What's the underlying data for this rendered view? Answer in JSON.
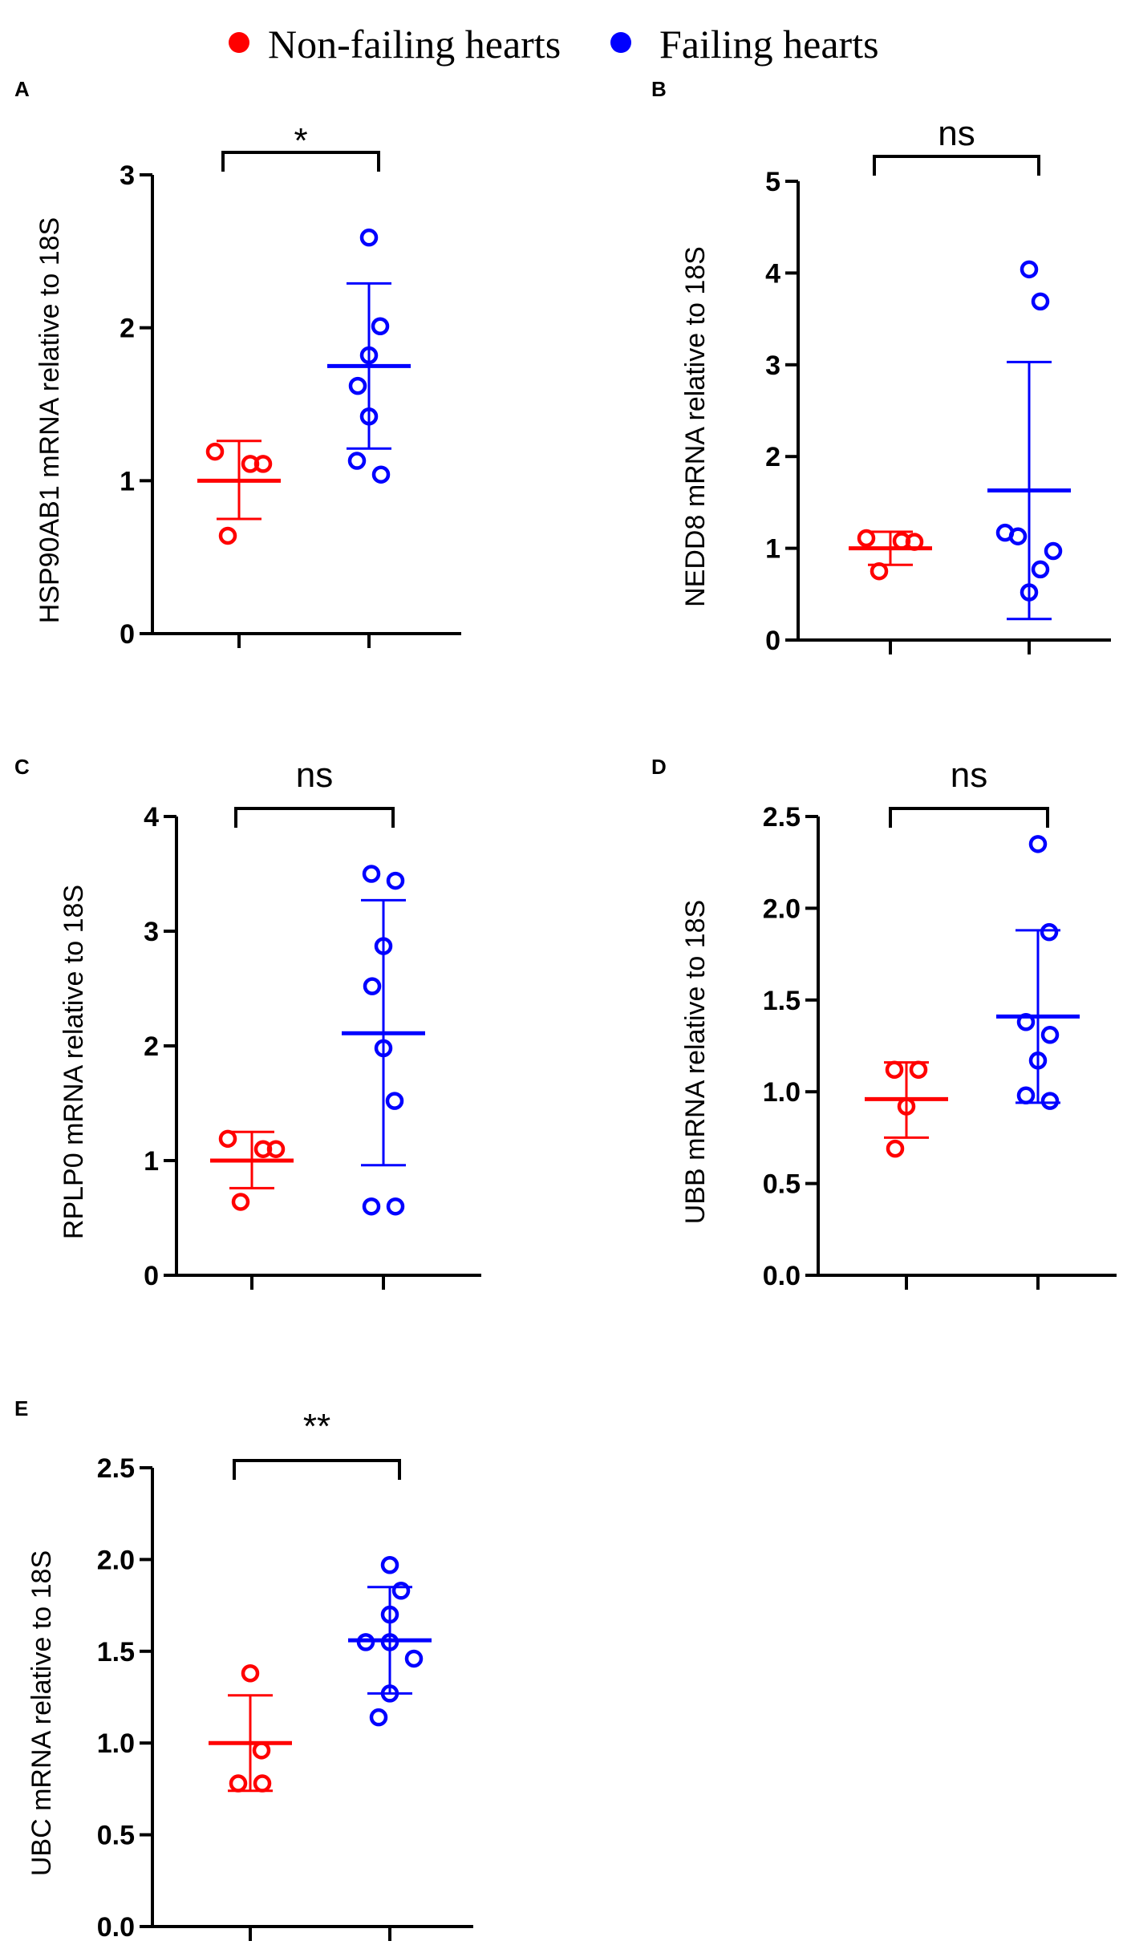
{
  "legend": {
    "items": [
      {
        "label": "Non-failing hearts",
        "color": "#ff0000"
      },
      {
        "label": "Failing hearts",
        "color": "#0000ff"
      }
    ]
  },
  "colors": {
    "non_failing": "#ff0000",
    "failing": "#0000ff",
    "axis": "#000000"
  },
  "chart_data": [
    {
      "panel": "A",
      "type": "scatter",
      "ylabel": "HSP90AB1 mRNA relative to 18S",
      "ylim": [
        0,
        3
      ],
      "yticks": [
        "0",
        "1",
        "2",
        "3"
      ],
      "yticks_values": [
        0,
        1,
        2,
        3
      ],
      "significance": "*",
      "series": [
        {
          "name": "Non-failing hearts",
          "values": [
            1.19,
            1.11,
            1.11,
            0.64
          ],
          "mean": 1.0,
          "sd_low": 0.75,
          "sd_high": 1.26
        },
        {
          "name": "Failing hearts",
          "values": [
            2.59,
            2.01,
            1.82,
            1.62,
            1.42,
            1.13,
            1.04
          ],
          "mean": 1.75,
          "sd_low": 1.21,
          "sd_high": 2.29
        }
      ]
    },
    {
      "panel": "B",
      "type": "scatter",
      "ylabel": "NEDD8 mRNA relative to 18S",
      "ylim": [
        0,
        5
      ],
      "yticks": [
        "0",
        "1",
        "2",
        "3",
        "4",
        "5"
      ],
      "yticks_values": [
        0,
        1,
        2,
        3,
        4,
        5
      ],
      "significance": "ns",
      "series": [
        {
          "name": "Non-failing hearts",
          "values": [
            1.11,
            1.08,
            1.07,
            0.75
          ],
          "mean": 1.0,
          "sd_low": 0.82,
          "sd_high": 1.18
        },
        {
          "name": "Failing hearts",
          "values": [
            4.04,
            3.69,
            1.17,
            1.13,
            0.97,
            0.77,
            0.52
          ],
          "mean": 1.63,
          "sd_low": 0.23,
          "sd_high": 3.03
        }
      ]
    },
    {
      "panel": "C",
      "type": "scatter",
      "ylabel": "RPLP0 mRNA relative to 18S",
      "ylim": [
        0,
        4
      ],
      "yticks": [
        "0",
        "1",
        "2",
        "3",
        "4"
      ],
      "yticks_values": [
        0,
        1,
        2,
        3,
        4
      ],
      "significance": "ns",
      "series": [
        {
          "name": "Non-failing hearts",
          "values": [
            1.19,
            1.1,
            1.1,
            0.64
          ],
          "mean": 1.0,
          "sd_low": 0.76,
          "sd_high": 1.25
        },
        {
          "name": "Failing hearts",
          "values": [
            3.5,
            3.44,
            2.87,
            2.52,
            1.98,
            1.52,
            0.6,
            0.6
          ],
          "mean": 2.11,
          "sd_low": 0.96,
          "sd_high": 3.27
        }
      ]
    },
    {
      "panel": "D",
      "type": "scatter",
      "ylabel": "UBB mRNA relative to 18S",
      "ylim": [
        0,
        2.5
      ],
      "yticks": [
        "0.0",
        "0.5",
        "1.0",
        "1.5",
        "2.0",
        "2.5"
      ],
      "yticks_values": [
        0,
        0.5,
        1.0,
        1.5,
        2.0,
        2.5
      ],
      "significance": "ns",
      "series": [
        {
          "name": "Non-failing hearts",
          "values": [
            1.12,
            1.12,
            0.92,
            0.69
          ],
          "mean": 0.96,
          "sd_low": 0.75,
          "sd_high": 1.16
        },
        {
          "name": "Failing hearts",
          "values": [
            2.35,
            1.87,
            1.38,
            1.31,
            1.17,
            0.98,
            0.95
          ],
          "mean": 1.41,
          "sd_low": 0.94,
          "sd_high": 1.88
        }
      ]
    },
    {
      "panel": "E",
      "type": "scatter",
      "ylabel": "UBC mRNA relative to 18S",
      "ylim": [
        0,
        2.5
      ],
      "yticks": [
        "0.0",
        "0.5",
        "1.0",
        "1.5",
        "2.0",
        "2.5"
      ],
      "yticks_values": [
        0,
        0.5,
        1.0,
        1.5,
        2.0,
        2.5
      ],
      "significance": "**",
      "series": [
        {
          "name": "Non-failing hearts",
          "values": [
            1.38,
            0.96,
            0.78,
            0.78
          ],
          "mean": 1.0,
          "sd_low": 0.74,
          "sd_high": 1.26
        },
        {
          "name": "Failing hearts",
          "values": [
            1.97,
            1.83,
            1.7,
            1.55,
            1.55,
            1.46,
            1.27,
            1.14
          ],
          "mean": 1.56,
          "sd_low": 1.27,
          "sd_high": 1.85
        }
      ]
    }
  ]
}
